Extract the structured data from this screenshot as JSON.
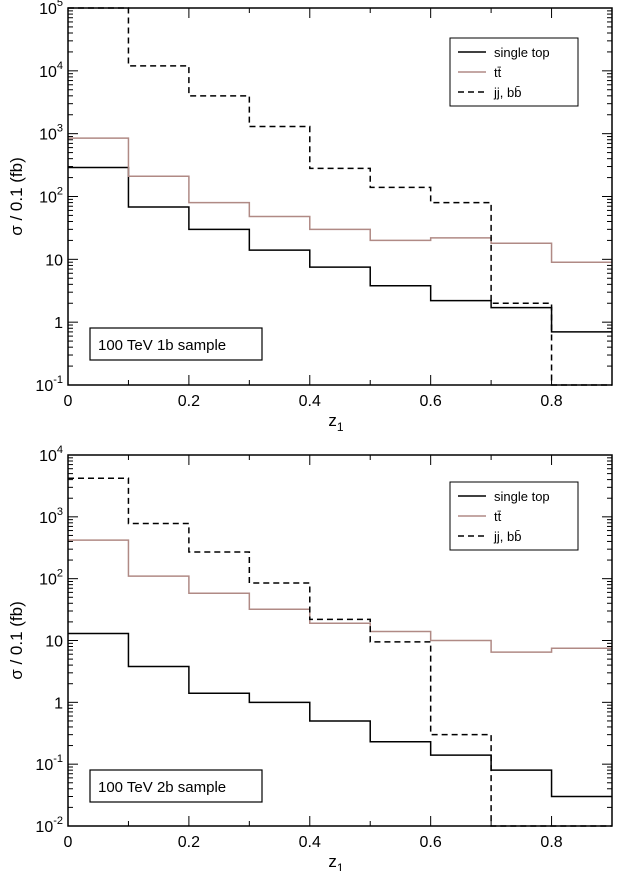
{
  "chart_data": [
    {
      "type": "line",
      "step": true,
      "yscale": "log",
      "xlim": [
        0,
        0.9
      ],
      "ylim": [
        0.1,
        100000
      ],
      "xlabel": "z",
      "xlabel_sub": "1",
      "ylabel": "σ / 0.1 (fb)",
      "annotation": "100 TeV 1b sample",
      "legend_position": "top-right",
      "x_ticks": [
        "0",
        "0.2",
        "0.4",
        "0.6",
        "0.8"
      ],
      "y_ticks": [
        {
          "base": "10",
          "exp": "-1"
        },
        {
          "base": "1",
          "exp": ""
        },
        {
          "base": "10",
          "exp": ""
        },
        {
          "base": "10",
          "exp": "2"
        },
        {
          "base": "10",
          "exp": "3"
        },
        {
          "base": "10",
          "exp": "4"
        },
        {
          "base": "10",
          "exp": "5"
        }
      ],
      "bin_edges": [
        0,
        0.1,
        0.2,
        0.3,
        0.4,
        0.5,
        0.6,
        0.7,
        0.8,
        0.9
      ],
      "series": [
        {
          "name": "single top",
          "color": "#000000",
          "dash": "",
          "values": [
            290,
            68,
            30,
            14,
            7.5,
            3.8,
            2.2,
            1.7,
            0.7
          ]
        },
        {
          "name": "tt̄",
          "color": "#b08a85",
          "dash": "",
          "values": [
            850,
            210,
            80,
            48,
            30,
            20,
            22,
            18,
            9
          ]
        },
        {
          "name": "jj, bb̄",
          "color": "#000000",
          "dash": "6,4",
          "values": [
            100000,
            12000,
            4000,
            1300,
            280,
            140,
            80,
            2,
            0.1
          ]
        }
      ]
    },
    {
      "type": "line",
      "step": true,
      "yscale": "log",
      "xlim": [
        0,
        0.9
      ],
      "ylim": [
        0.01,
        10000
      ],
      "xlabel": "z",
      "xlabel_sub": "1",
      "ylabel": "σ / 0.1 (fb)",
      "annotation": "100 TeV 2b sample",
      "legend_position": "top-right",
      "x_ticks": [
        "0",
        "0.2",
        "0.4",
        "0.6",
        "0.8"
      ],
      "y_ticks": [
        {
          "base": "10",
          "exp": "-2"
        },
        {
          "base": "10",
          "exp": "-1"
        },
        {
          "base": "1",
          "exp": ""
        },
        {
          "base": "10",
          "exp": ""
        },
        {
          "base": "10",
          "exp": "2"
        },
        {
          "base": "10",
          "exp": "3"
        },
        {
          "base": "10",
          "exp": "4"
        }
      ],
      "bin_edges": [
        0,
        0.1,
        0.2,
        0.3,
        0.4,
        0.5,
        0.6,
        0.7,
        0.8,
        0.9
      ],
      "series": [
        {
          "name": "single top",
          "color": "#000000",
          "dash": "",
          "values": [
            13,
            3.8,
            1.4,
            1.0,
            0.5,
            0.23,
            0.14,
            0.08,
            0.03
          ]
        },
        {
          "name": "tt̄",
          "color": "#b08a85",
          "dash": "",
          "values": [
            420,
            110,
            58,
            32,
            19,
            14,
            10,
            6.5,
            7.5
          ]
        },
        {
          "name": "jj, bb̄",
          "color": "#000000",
          "dash": "6,4",
          "values": [
            4200,
            780,
            270,
            85,
            22,
            9.5,
            0.3,
            0.01,
            0.01
          ]
        }
      ]
    }
  ]
}
